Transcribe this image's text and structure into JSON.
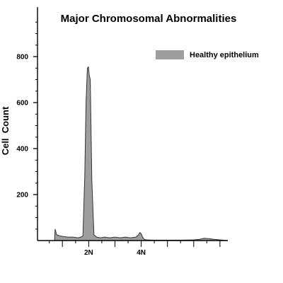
{
  "chart_data": {
    "type": "area",
    "title": "Major Chromosomal Abnormalities",
    "ylabel": "Cell  Count",
    "xlabel": "",
    "ylim": [
      0,
      900
    ],
    "y_ticks": [
      200,
      400,
      600,
      800
    ],
    "x_ticks": [
      {
        "label": "2N",
        "x": 2
      },
      {
        "label": "4N",
        "x": 4
      }
    ],
    "xlim": [
      0.05,
      7.3
    ],
    "grid": false,
    "legend_position": "top-right",
    "fill_color": "#9e9e9e",
    "series": [
      {
        "name": "Healthy epithelium",
        "x": [
          0.05,
          0.5,
          0.7,
          0.72,
          0.78,
          0.9,
          1.0,
          1.2,
          1.4,
          1.6,
          1.7,
          1.78,
          1.85,
          1.9,
          1.95,
          1.99,
          2.02,
          2.06,
          2.12,
          2.2,
          2.3,
          2.45,
          2.6,
          2.8,
          3.0,
          3.2,
          3.4,
          3.6,
          3.8,
          3.9,
          3.95,
          4.0,
          4.05,
          4.12,
          4.2,
          4.4,
          4.8,
          5.2,
          5.6,
          6.0,
          6.2,
          6.4,
          6.6,
          6.8,
          7.0,
          7.3
        ],
        "values": [
          0,
          0,
          0,
          50,
          25,
          20,
          18,
          15,
          15,
          12,
          15,
          20,
          280,
          600,
          750,
          755,
          720,
          700,
          260,
          25,
          15,
          12,
          15,
          12,
          15,
          12,
          15,
          12,
          15,
          25,
          35,
          30,
          15,
          5,
          3,
          2,
          2,
          2,
          2,
          3,
          5,
          10,
          8,
          5,
          3,
          0
        ]
      }
    ]
  }
}
